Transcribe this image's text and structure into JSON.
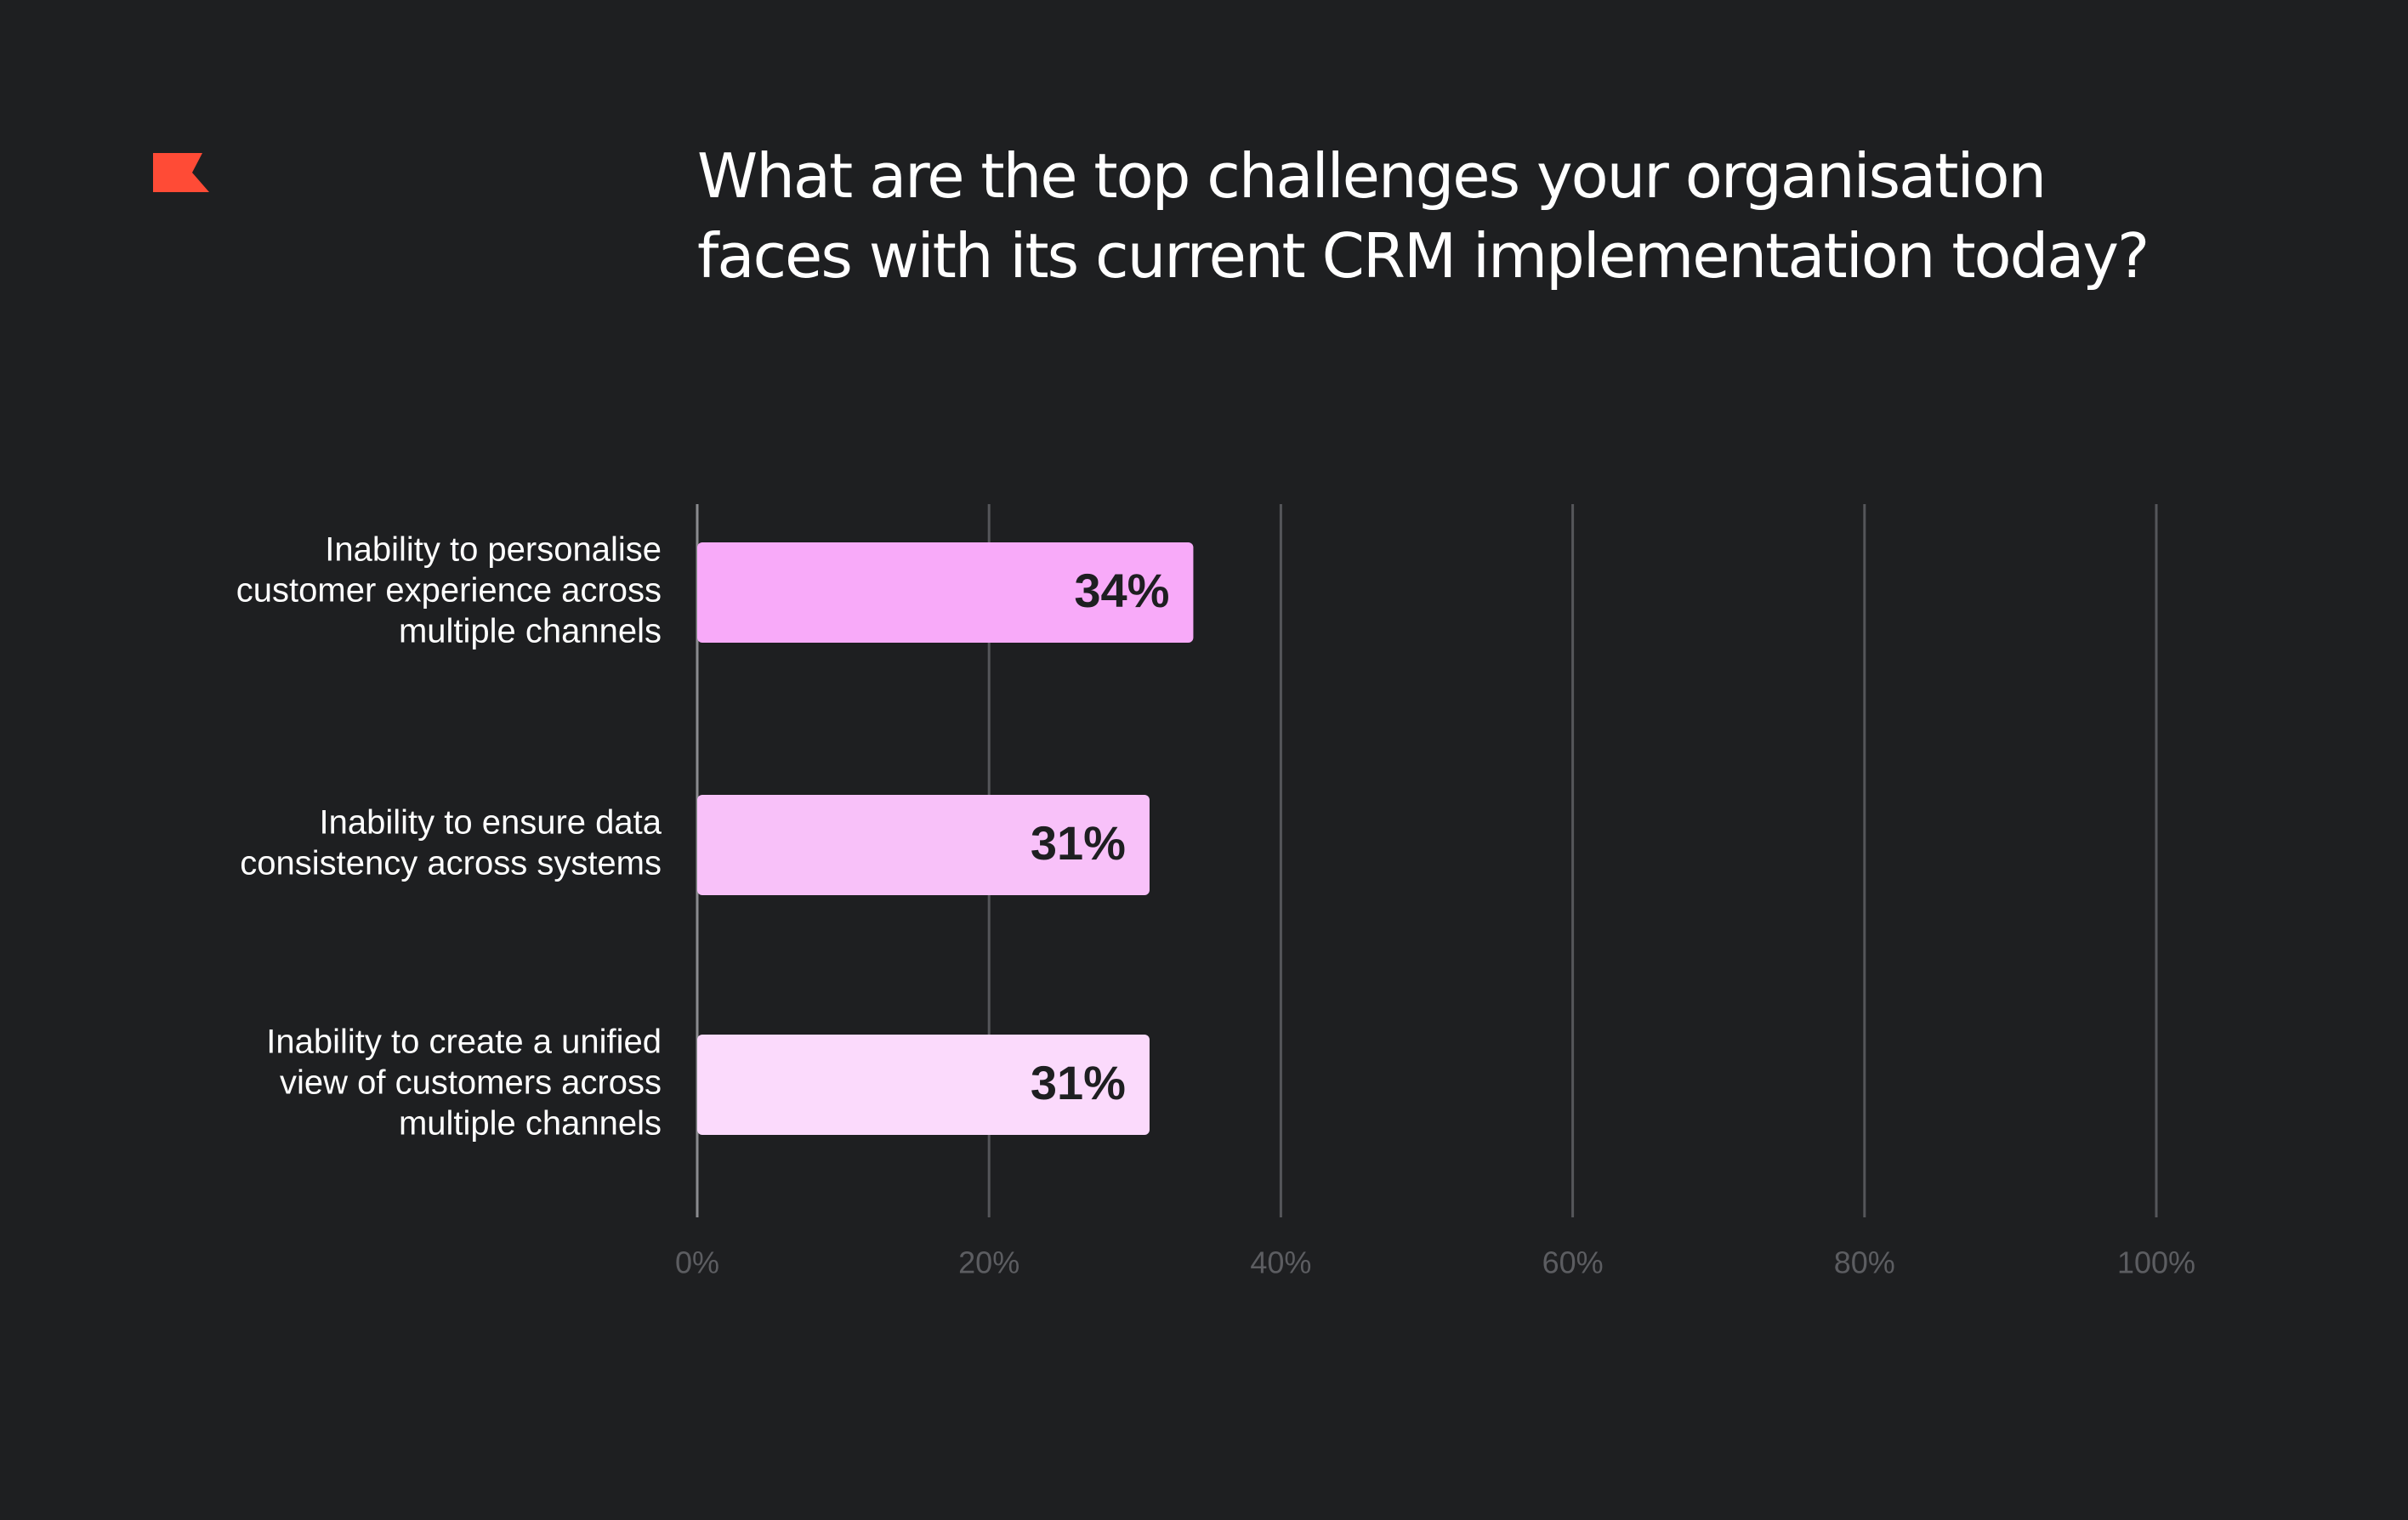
{
  "chart_data": {
    "type": "bar",
    "orientation": "horizontal",
    "title_lines": [
      "What are the top challenges your organisation",
      "faces with its current CRM implementation today?"
    ],
    "categories": [
      [
        "Inability to personalise",
        "customer experience across",
        "multiple channels"
      ],
      [
        "Inability to ensure data",
        "consistency across systems"
      ],
      [
        "Inability to create a unified",
        "view of customers across",
        "multiple channels"
      ]
    ],
    "values": [
      34,
      31,
      31
    ],
    "value_labels": [
      "34%",
      "31%",
      "31%"
    ],
    "bar_colors": [
      "#f8aaf9",
      "#f8c1f9",
      "#fbdafc"
    ],
    "xlim": [
      0,
      100
    ],
    "x_ticks": [
      0,
      20,
      40,
      60,
      80,
      100
    ],
    "x_tick_labels": [
      "0%",
      "20%",
      "40%",
      "60%",
      "80%",
      "100%"
    ],
    "grid": true,
    "colors": {
      "background": "#1e1f21",
      "grid": "#55565a",
      "tick_label": "#5c5d61",
      "value_label": "#1e1f21",
      "category_label": "#ffffff",
      "logo": "#ff4b36"
    }
  },
  "logo": {
    "icon": "flag-icon",
    "color": "#ff4b36"
  }
}
